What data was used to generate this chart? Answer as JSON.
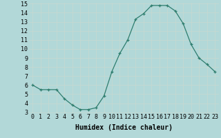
{
  "x": [
    0,
    1,
    2,
    3,
    4,
    5,
    6,
    7,
    8,
    9,
    10,
    11,
    12,
    13,
    14,
    15,
    16,
    17,
    18,
    19,
    20,
    21,
    22,
    23
  ],
  "y": [
    6.0,
    5.5,
    5.5,
    5.5,
    4.5,
    3.8,
    3.3,
    3.3,
    3.5,
    4.8,
    7.5,
    9.5,
    11.0,
    13.3,
    13.9,
    14.8,
    14.8,
    14.8,
    14.2,
    12.8,
    10.5,
    9.0,
    8.3,
    7.5
  ],
  "xlabel": "Humidex (Indice chaleur)",
  "ylim": [
    3,
    15
  ],
  "xlim": [
    -0.5,
    23.5
  ],
  "yticks": [
    3,
    4,
    5,
    6,
    7,
    8,
    9,
    10,
    11,
    12,
    13,
    14,
    15
  ],
  "xticks": [
    0,
    1,
    2,
    3,
    4,
    5,
    6,
    7,
    8,
    9,
    10,
    11,
    12,
    13,
    14,
    15,
    16,
    17,
    18,
    19,
    20,
    21,
    22,
    23
  ],
  "xtick_labels": [
    "0",
    "1",
    "2",
    "3",
    "4",
    "5",
    "6",
    "7",
    "8",
    "9",
    "10",
    "11",
    "12",
    "13",
    "14",
    "15",
    "16",
    "17",
    "18",
    "19",
    "20",
    "21",
    "22",
    "23"
  ],
  "line_color": "#2e7d6e",
  "marker": "+",
  "bg_color": "#b2d8d8",
  "grid_color": "#d0e8e8",
  "label_fontsize": 7,
  "tick_fontsize": 6
}
